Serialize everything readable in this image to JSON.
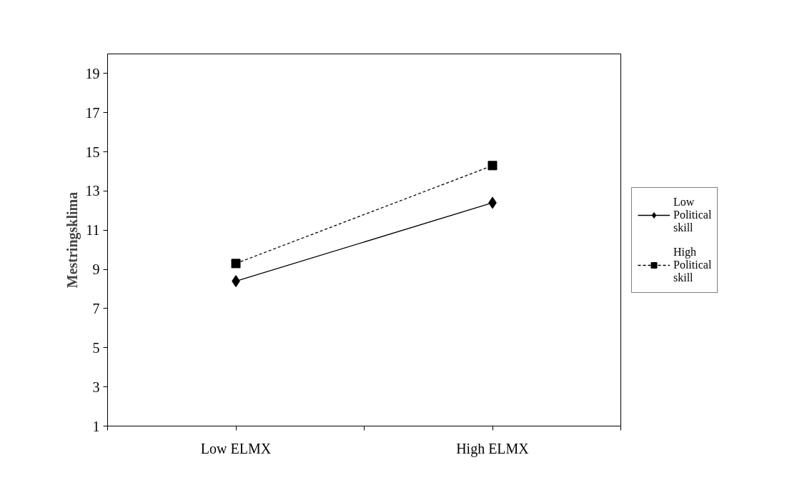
{
  "chart_data": {
    "type": "line",
    "ylabel": "Mestringsklima",
    "categories": [
      "Low ELMX",
      "High ELMX"
    ],
    "series": [
      {
        "name": "Low Political skill",
        "color": "#000000",
        "values": [
          8.4,
          12.4
        ],
        "marker": "diamond",
        "line_style": "solid"
      },
      {
        "name": "High Political skill",
        "color": "#000000",
        "values": [
          9.3,
          14.3
        ],
        "marker": "square",
        "line_style": "dashed"
      }
    ],
    "ylim": [
      1,
      20
    ],
    "yticks": [
      1,
      3,
      5,
      7,
      9,
      11,
      13,
      15,
      17,
      19
    ],
    "grid": false,
    "legend": "right"
  }
}
